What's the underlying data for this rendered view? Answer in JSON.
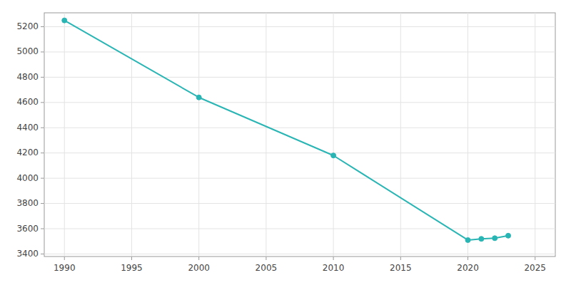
{
  "chart_data": {
    "type": "line",
    "x": [
      1990,
      2000,
      2010,
      2020,
      2021,
      2022,
      2023
    ],
    "values": [
      5250,
      4640,
      4180,
      3510,
      3520,
      3525,
      3545
    ],
    "color": "#2ab5b5",
    "marker": "circle",
    "xlim": [
      1988.5,
      2026.5
    ],
    "ylim": [
      3380,
      5310
    ],
    "xticks": [
      1990,
      1995,
      2000,
      2005,
      2010,
      2015,
      2020,
      2025
    ],
    "yticks": [
      3400,
      3600,
      3800,
      4000,
      4200,
      4400,
      4600,
      4800,
      5000,
      5200
    ],
    "grid": true
  }
}
